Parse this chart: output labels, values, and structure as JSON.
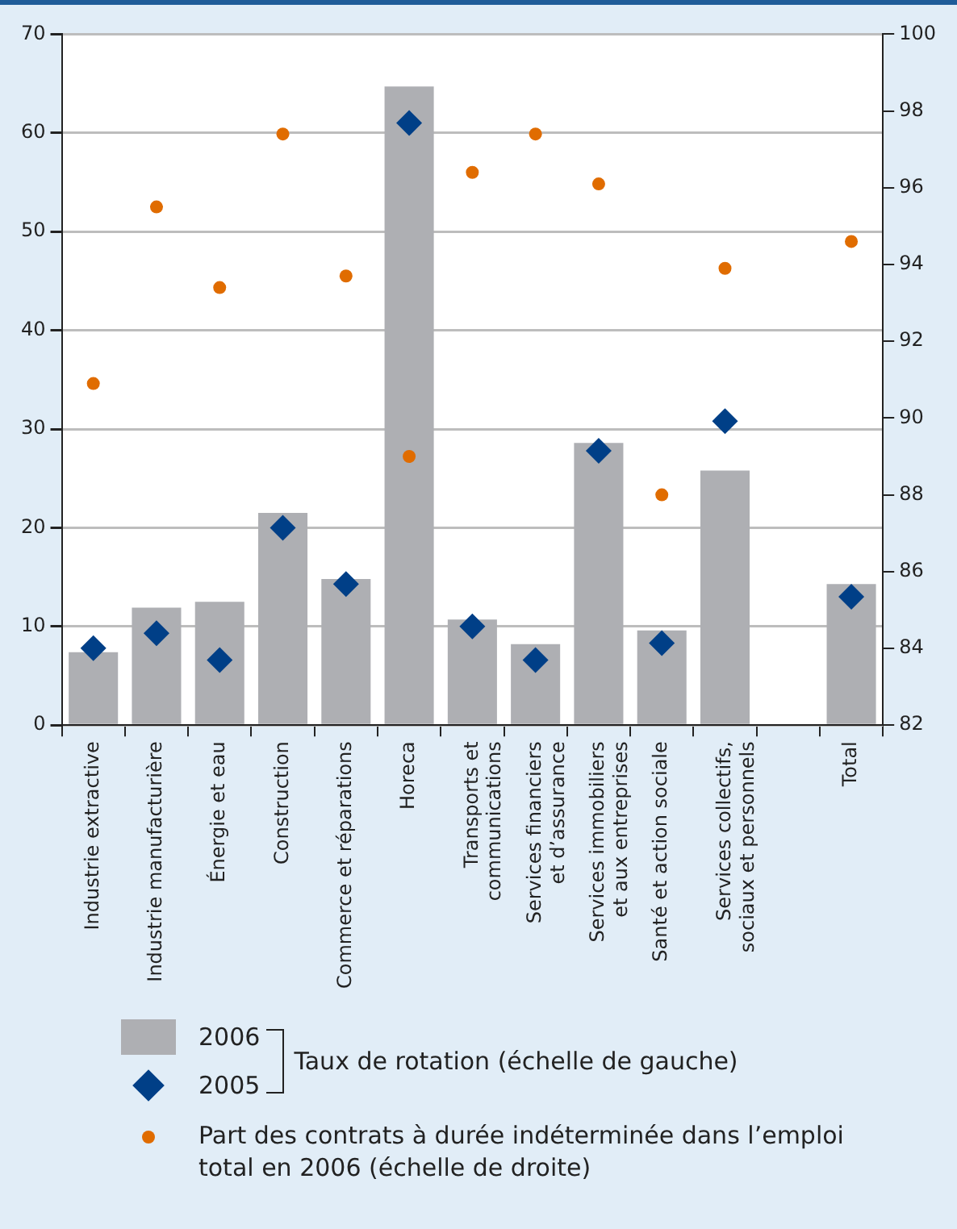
{
  "chart_data": {
    "type": "bar",
    "categories": [
      "Industrie extractive",
      "Industrie manufacturière",
      "Énergie et eau",
      "Construction",
      "Commerce et réparations",
      "Horeca",
      "Transports et communications",
      "Services financiers et d’assurance",
      "Services immobiliers et aux entreprises",
      "Santé et action sociale",
      "Services collectifs, sociaux et personnels",
      null,
      "Total"
    ],
    "series": [
      {
        "name": "2006",
        "color": "#aeafb3",
        "values": [
          7.4,
          11.9,
          12.5,
          21.5,
          14.8,
          64.7,
          10.7,
          8.2,
          28.6,
          9.6,
          25.8,
          null,
          14.3
        ]
      },
      {
        "name": "2005",
        "type": "scatter",
        "marker": "diamond",
        "color": "#003f87",
        "values": [
          7.8,
          9.3,
          6.6,
          20.0,
          14.3,
          61.0,
          10.0,
          6.6,
          27.8,
          8.3,
          30.8,
          null,
          13.0
        ]
      },
      {
        "name": "Part des contrats à durée indéterminée dans l’emploi total en 2006 (échelle de droite)",
        "type": "scatter",
        "marker": "circle",
        "axis": "y2",
        "color": "#e06c00",
        "values": [
          90.9,
          95.5,
          93.4,
          97.4,
          93.7,
          89.0,
          96.4,
          97.4,
          96.1,
          88.0,
          93.9,
          null,
          94.6
        ]
      }
    ],
    "legend_title": "Taux de rotation (échelle de gauche)",
    "ylim": [
      0,
      70
    ],
    "yticks": [
      0,
      10,
      20,
      30,
      40,
      50,
      60,
      70
    ],
    "y2lim": [
      82,
      100
    ],
    "y2ticks": [
      82,
      84,
      86,
      88,
      90,
      92,
      94,
      96,
      98,
      100
    ],
    "grid": "y",
    "legend": "bottom"
  }
}
